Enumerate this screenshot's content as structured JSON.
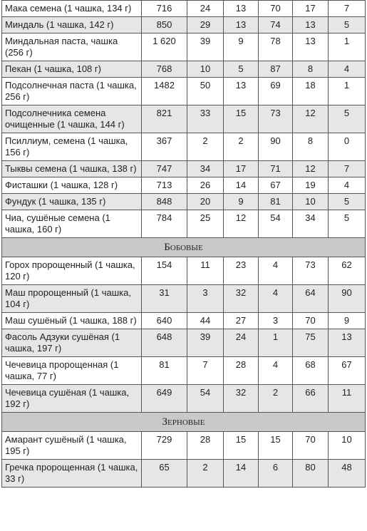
{
  "table": {
    "rows": [
      {
        "name": "Мака семена (1 чашка, 134 г)",
        "values": [
          716,
          24,
          13,
          70,
          17,
          7
        ]
      },
      {
        "name": "Миндаль (1 чашка, 142 г)",
        "values": [
          850,
          29,
          13,
          74,
          13,
          5
        ]
      },
      {
        "name": "Миндальная паста, чашка (256 г)",
        "values": [
          "1 620",
          39,
          9,
          78,
          13,
          1
        ]
      },
      {
        "name": "Пекан (1 чашка, 108 г)",
        "values": [
          768,
          10,
          5,
          87,
          8,
          4
        ]
      },
      {
        "name": "Подсолнечная паста (1 чашка, 256 г)",
        "values": [
          1482,
          50,
          13,
          69,
          18,
          1
        ]
      },
      {
        "name": "Подсолнечника семена очищенные (1 чашка, 144 г)",
        "values": [
          821,
          33,
          15,
          73,
          12,
          5
        ]
      },
      {
        "name": "Псиллиум, семена (1 чашка, 156 г)",
        "values": [
          367,
          2,
          2,
          90,
          8,
          0
        ]
      },
      {
        "name": "Тыквы семена (1 чашка, 138 г)",
        "values": [
          747,
          34,
          17,
          71,
          12,
          7
        ]
      },
      {
        "name": "Фисташки (1 чашка, 128 г)",
        "values": [
          713,
          26,
          14,
          67,
          19,
          4
        ]
      },
      {
        "name": "Фундук (1 чашка, 135 г)",
        "values": [
          848,
          20,
          9,
          81,
          10,
          5
        ]
      },
      {
        "name": "Чиа, сушёные семена (1 чашка, 160 г)",
        "values": [
          784,
          25,
          12,
          54,
          34,
          5
        ]
      },
      {
        "section": "Бобовые"
      },
      {
        "name": "Горох пророщенный (1 чашка, 120 г)",
        "values": [
          154,
          11,
          23,
          4,
          73,
          62
        ]
      },
      {
        "name": "Маш пророщенный (1 чашка, 104 г)",
        "values": [
          31,
          3,
          32,
          4,
          64,
          90
        ]
      },
      {
        "name": "Маш сушёный (1 чашка, 188 г)",
        "values": [
          640,
          44,
          27,
          3,
          70,
          9
        ]
      },
      {
        "name": "Фасоль Адзуки сушёная (1 чашка, 197 г)",
        "values": [
          648,
          39,
          24,
          1,
          75,
          13
        ]
      },
      {
        "name": "Чечевица пророщенная (1 чашка, 77 г)",
        "values": [
          81,
          7,
          28,
          4,
          68,
          67
        ]
      },
      {
        "name": "Чечевица сушёная (1 чашка, 192 г)",
        "values": [
          649,
          54,
          32,
          2,
          66,
          11
        ]
      },
      {
        "section": "Зерновые"
      },
      {
        "name": "Амарант сушёный (1 чашка, 195 г)",
        "values": [
          729,
          28,
          15,
          15,
          70,
          10
        ]
      },
      {
        "name": "Гречка пророщенная (1 чашка, 33 г)",
        "values": [
          65,
          2,
          14,
          6,
          80,
          48
        ]
      }
    ]
  }
}
